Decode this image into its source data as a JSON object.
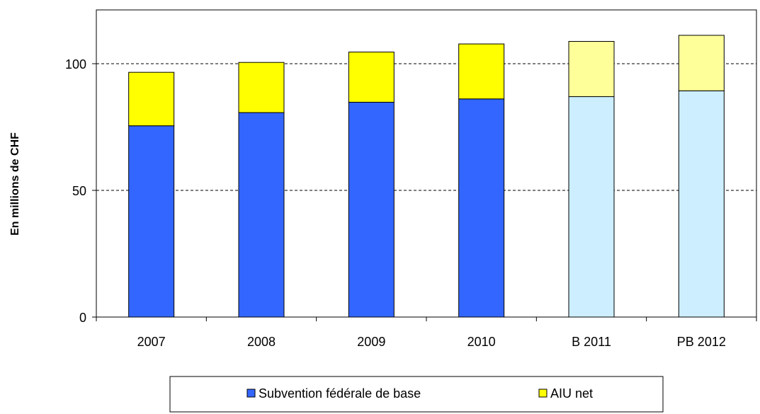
{
  "chart_data": {
    "type": "bar",
    "stacked": true,
    "categories": [
      "2007",
      "2008",
      "2009",
      "2010",
      "B 2011",
      "PB 2012"
    ],
    "series": [
      {
        "name": "Subvention fédérale de base",
        "values": [
          75.5,
          80.7,
          84.8,
          86.1,
          87.0,
          89.3
        ],
        "color": "#3366ff",
        "highlight_colors": [
          "#3366ff",
          "#3366ff",
          "#3366ff",
          "#3366ff",
          "#cceeff",
          "#cceeff"
        ]
      },
      {
        "name": "AIU net",
        "values": [
          21.1,
          19.8,
          19.8,
          21.7,
          21.8,
          21.9
        ],
        "color": "#ffff00",
        "highlight_colors": [
          "#ffff00",
          "#ffff00",
          "#ffff00",
          "#ffff00",
          "#ffff99",
          "#ffff99"
        ]
      }
    ],
    "ylabel": "En millions de CHF",
    "ylim": [
      0,
      120
    ],
    "yticks": [
      "0",
      "50",
      "100"
    ],
    "ytick_values": [
      0,
      50,
      100
    ],
    "grid": "horizontal dashed at 50 and 100",
    "legend_position": "bottom"
  }
}
